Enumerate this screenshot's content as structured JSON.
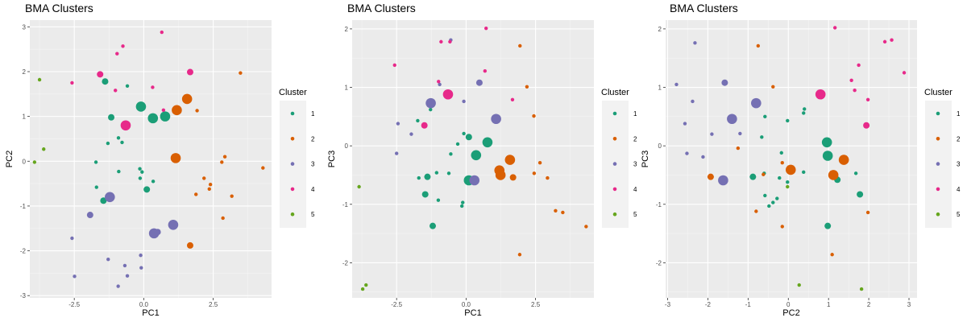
{
  "chart_data": [
    {
      "type": "scatter",
      "title": "BMA Clusters",
      "xlabel": "PC1",
      "ylabel": "PC2",
      "xlim": [
        -4.1,
        4.6
      ],
      "ylim": [
        -3.05,
        3.15
      ],
      "xticks": [
        -2.5,
        0.0,
        2.5
      ],
      "xtick_labels": [
        "-2.5",
        "0.0",
        "2.5"
      ],
      "yticks": [
        -3,
        -2,
        -1,
        0,
        1,
        2,
        3
      ],
      "ytick_labels": [
        "-3",
        "-2",
        "-1",
        "0",
        "1",
        "2",
        "3"
      ],
      "grid": true,
      "legend_title": "Cluster",
      "legend_position": "right",
      "points": [
        {
          "x": -0.1,
          "y": 1.22,
          "c": 1,
          "s": 2
        },
        {
          "x": 0.33,
          "y": 0.96,
          "c": 1,
          "s": 2
        },
        {
          "x": 0.77,
          "y": 1.0,
          "c": 1,
          "s": 2
        },
        {
          "x": -1.17,
          "y": 0.98,
          "c": 1,
          "s": 1
        },
        {
          "x": -1.39,
          "y": 1.78,
          "c": 1,
          "s": 1
        },
        {
          "x": -0.59,
          "y": 1.68,
          "c": 1,
          "s": 0
        },
        {
          "x": -0.91,
          "y": 0.52,
          "c": 1,
          "s": 0
        },
        {
          "x": -0.78,
          "y": 0.42,
          "c": 1,
          "s": 0
        },
        {
          "x": -1.29,
          "y": 0.4,
          "c": 1,
          "s": 0
        },
        {
          "x": -1.72,
          "y": -0.02,
          "c": 1,
          "s": 0
        },
        {
          "x": -0.9,
          "y": -0.23,
          "c": 1,
          "s": 0
        },
        {
          "x": -0.14,
          "y": -0.17,
          "c": 1,
          "s": 0
        },
        {
          "x": -0.06,
          "y": -0.24,
          "c": 1,
          "s": 0
        },
        {
          "x": -0.13,
          "y": -0.38,
          "c": 1,
          "s": 0
        },
        {
          "x": 0.34,
          "y": -0.45,
          "c": 1,
          "s": 0
        },
        {
          "x": 0.11,
          "y": -0.63,
          "c": 1,
          "s": 1
        },
        {
          "x": -1.7,
          "y": -0.58,
          "c": 1,
          "s": 0
        },
        {
          "x": -1.45,
          "y": -0.88,
          "c": 1,
          "s": 1
        },
        {
          "x": 1.19,
          "y": 1.14,
          "c": 2,
          "s": 2
        },
        {
          "x": 1.56,
          "y": 1.39,
          "c": 2,
          "s": 2
        },
        {
          "x": 1.15,
          "y": 0.07,
          "c": 2,
          "s": 2
        },
        {
          "x": 1.92,
          "y": 1.13,
          "c": 2,
          "s": 0
        },
        {
          "x": 1.67,
          "y": -1.88,
          "c": 2,
          "s": 1
        },
        {
          "x": 3.48,
          "y": 1.97,
          "c": 2,
          "s": 0
        },
        {
          "x": 2.92,
          "y": 0.1,
          "c": 2,
          "s": 0
        },
        {
          "x": 2.81,
          "y": -0.02,
          "c": 2,
          "s": 0
        },
        {
          "x": 4.29,
          "y": -0.15,
          "c": 2,
          "s": 0
        },
        {
          "x": 2.17,
          "y": -0.38,
          "c": 2,
          "s": 0
        },
        {
          "x": 2.4,
          "y": -0.52,
          "c": 2,
          "s": 0
        },
        {
          "x": 2.36,
          "y": -0.62,
          "c": 2,
          "s": 0
        },
        {
          "x": 1.88,
          "y": -0.74,
          "c": 2,
          "s": 0
        },
        {
          "x": 3.17,
          "y": -0.78,
          "c": 2,
          "s": 0
        },
        {
          "x": 2.85,
          "y": -1.27,
          "c": 2,
          "s": 0
        },
        {
          "x": -1.22,
          "y": -0.8,
          "c": 3,
          "s": 2
        },
        {
          "x": 0.37,
          "y": -1.61,
          "c": 3,
          "s": 2
        },
        {
          "x": 0.5,
          "y": -1.58,
          "c": 3,
          "s": 1
        },
        {
          "x": 1.06,
          "y": -1.42,
          "c": 3,
          "s": 2
        },
        {
          "x": -1.93,
          "y": -1.2,
          "c": 3,
          "s": 1
        },
        {
          "x": -2.58,
          "y": -1.72,
          "c": 3,
          "s": 0
        },
        {
          "x": -1.28,
          "y": -2.19,
          "c": 3,
          "s": 0
        },
        {
          "x": -0.11,
          "y": -2.1,
          "c": 3,
          "s": 0
        },
        {
          "x": -0.68,
          "y": -2.33,
          "c": 3,
          "s": 0
        },
        {
          "x": -0.09,
          "y": -2.38,
          "c": 3,
          "s": 0
        },
        {
          "x": -2.49,
          "y": -2.57,
          "c": 3,
          "s": 0
        },
        {
          "x": -0.59,
          "y": -2.56,
          "c": 3,
          "s": 0
        },
        {
          "x": -0.92,
          "y": -2.79,
          "c": 3,
          "s": 0
        },
        {
          "x": -0.65,
          "y": 0.8,
          "c": 4,
          "s": 2
        },
        {
          "x": -1.57,
          "y": 1.94,
          "c": 4,
          "s": 1
        },
        {
          "x": -2.58,
          "y": 1.75,
          "c": 4,
          "s": 0
        },
        {
          "x": -0.75,
          "y": 2.57,
          "c": 4,
          "s": 0
        },
        {
          "x": -0.96,
          "y": 2.4,
          "c": 4,
          "s": 0
        },
        {
          "x": 0.65,
          "y": 2.88,
          "c": 4,
          "s": 0
        },
        {
          "x": 1.67,
          "y": 1.99,
          "c": 4,
          "s": 1
        },
        {
          "x": 0.32,
          "y": 1.65,
          "c": 4,
          "s": 0
        },
        {
          "x": -1.02,
          "y": 1.58,
          "c": 4,
          "s": 0
        },
        {
          "x": 0.71,
          "y": 1.14,
          "c": 4,
          "s": 0
        },
        {
          "x": -3.75,
          "y": 1.82,
          "c": 5,
          "s": 0
        },
        {
          "x": -3.6,
          "y": 0.27,
          "c": 5,
          "s": 0
        },
        {
          "x": -3.93,
          "y": -0.02,
          "c": 5,
          "s": 0
        }
      ]
    },
    {
      "type": "scatter",
      "title": "BMA Clusters",
      "xlabel": "PC1",
      "ylabel": "PC3",
      "xlim": [
        -4.1,
        4.6
      ],
      "ylim": [
        -2.6,
        2.15
      ],
      "xticks": [
        -2.5,
        0.0,
        2.5
      ],
      "xtick_labels": [
        "-2.5",
        "0.0",
        "2.5"
      ],
      "yticks": [
        -2,
        -1,
        0,
        1,
        2
      ],
      "ytick_labels": [
        "-2",
        "-1",
        "0",
        "1",
        "2"
      ],
      "grid": true,
      "legend_title": "Cluster",
      "legend_position": "right",
      "points": [
        {
          "x": 0.1,
          "y": -0.59,
          "c": 1,
          "s": 2
        },
        {
          "x": 0.36,
          "y": -0.16,
          "c": 1,
          "s": 2
        },
        {
          "x": 0.77,
          "y": 0.06,
          "c": 1,
          "s": 2
        },
        {
          "x": -1.2,
          "y": -1.37,
          "c": 1,
          "s": 1
        },
        {
          "x": -1.39,
          "y": -0.53,
          "c": 1,
          "s": 1
        },
        {
          "x": -1.47,
          "y": -0.83,
          "c": 1,
          "s": 1
        },
        {
          "x": -1.7,
          "y": -0.55,
          "c": 1,
          "s": 0
        },
        {
          "x": -1.06,
          "y": -0.46,
          "c": 1,
          "s": 0
        },
        {
          "x": -0.62,
          "y": -0.47,
          "c": 1,
          "s": 0
        },
        {
          "x": -1.0,
          "y": -0.93,
          "c": 1,
          "s": 0
        },
        {
          "x": -0.12,
          "y": -0.97,
          "c": 1,
          "s": 0
        },
        {
          "x": -0.15,
          "y": -1.03,
          "c": 1,
          "s": 0
        },
        {
          "x": 0.1,
          "y": 0.15,
          "c": 1,
          "s": 1
        },
        {
          "x": -0.08,
          "y": 0.21,
          "c": 1,
          "s": 0
        },
        {
          "x": -0.3,
          "y": 0.03,
          "c": 1,
          "s": 0
        },
        {
          "x": -0.55,
          "y": -0.14,
          "c": 1,
          "s": 0
        },
        {
          "x": -1.74,
          "y": 0.43,
          "c": 1,
          "s": 0
        },
        {
          "x": -1.28,
          "y": 0.62,
          "c": 1,
          "s": 0
        },
        {
          "x": 1.2,
          "y": -0.42,
          "c": 2,
          "s": 2
        },
        {
          "x": 1.24,
          "y": -0.5,
          "c": 2,
          "s": 2
        },
        {
          "x": 1.58,
          "y": -0.24,
          "c": 2,
          "s": 2
        },
        {
          "x": 1.69,
          "y": -0.54,
          "c": 2,
          "s": 1
        },
        {
          "x": 1.94,
          "y": 1.71,
          "c": 2,
          "s": 0
        },
        {
          "x": 2.19,
          "y": 1.01,
          "c": 2,
          "s": 0
        },
        {
          "x": 2.44,
          "y": 0.51,
          "c": 2,
          "s": 0
        },
        {
          "x": 2.66,
          "y": -0.29,
          "c": 2,
          "s": 0
        },
        {
          "x": 2.45,
          "y": -0.47,
          "c": 2,
          "s": 0
        },
        {
          "x": 2.93,
          "y": -0.55,
          "c": 2,
          "s": 0
        },
        {
          "x": 3.22,
          "y": -1.11,
          "c": 2,
          "s": 0
        },
        {
          "x": 3.48,
          "y": -1.14,
          "c": 2,
          "s": 0
        },
        {
          "x": 4.32,
          "y": -1.38,
          "c": 2,
          "s": 0
        },
        {
          "x": 1.93,
          "y": -1.86,
          "c": 2,
          "s": 0
        },
        {
          "x": -1.27,
          "y": 0.73,
          "c": 3,
          "s": 2
        },
        {
          "x": 0.48,
          "y": 1.08,
          "c": 3,
          "s": 1
        },
        {
          "x": 1.08,
          "y": 0.46,
          "c": 3,
          "s": 2
        },
        {
          "x": 0.3,
          "y": -0.59,
          "c": 3,
          "s": 2
        },
        {
          "x": -0.55,
          "y": 1.81,
          "c": 3,
          "s": 0
        },
        {
          "x": -0.95,
          "y": 1.05,
          "c": 3,
          "s": 0
        },
        {
          "x": -0.08,
          "y": 0.76,
          "c": 3,
          "s": 0
        },
        {
          "x": -2.45,
          "y": 0.38,
          "c": 3,
          "s": 0
        },
        {
          "x": -1.97,
          "y": 0.2,
          "c": 3,
          "s": 0
        },
        {
          "x": -2.5,
          "y": -0.13,
          "c": 3,
          "s": 0
        },
        {
          "x": -0.65,
          "y": 0.88,
          "c": 4,
          "s": 2
        },
        {
          "x": -1.5,
          "y": 0.35,
          "c": 4,
          "s": 1
        },
        {
          "x": -2.57,
          "y": 1.38,
          "c": 4,
          "s": 0
        },
        {
          "x": -0.9,
          "y": 1.78,
          "c": 4,
          "s": 0
        },
        {
          "x": -0.58,
          "y": 1.78,
          "c": 4,
          "s": 0
        },
        {
          "x": 0.72,
          "y": 2.01,
          "c": 4,
          "s": 0
        },
        {
          "x": -0.99,
          "y": 1.1,
          "c": 4,
          "s": 0
        },
        {
          "x": 0.68,
          "y": 1.28,
          "c": 4,
          "s": 0
        },
        {
          "x": 1.67,
          "y": 0.79,
          "c": 4,
          "s": 0
        },
        {
          "x": -3.85,
          "y": -0.7,
          "c": 5,
          "s": 0
        },
        {
          "x": -3.6,
          "y": -2.38,
          "c": 5,
          "s": 0
        },
        {
          "x": -3.72,
          "y": -2.45,
          "c": 5,
          "s": 0
        }
      ]
    },
    {
      "type": "scatter",
      "title": "BMA Clusters",
      "xlabel": "PC2",
      "ylabel": "PC3",
      "xlim": [
        -3.05,
        3.2
      ],
      "ylim": [
        -2.6,
        2.15
      ],
      "xticks": [
        -3,
        -2,
        -1,
        0,
        1,
        2,
        3
      ],
      "xtick_labels": [
        "-3",
        "-2",
        "-1",
        "0",
        "1",
        "2",
        "3"
      ],
      "yticks": [
        -2,
        -1,
        0,
        1,
        2
      ],
      "ytick_labels": [
        "-2",
        "-1",
        "0",
        "1",
        "2"
      ],
      "grid": true,
      "legend_title": "Cluster",
      "legend_position": "right",
      "points": [
        {
          "x": 0.96,
          "y": 0.06,
          "c": 1,
          "s": 2
        },
        {
          "x": 0.98,
          "y": -0.17,
          "c": 1,
          "s": 2
        },
        {
          "x": 1.22,
          "y": -0.58,
          "c": 1,
          "s": 1
        },
        {
          "x": 0.98,
          "y": -1.37,
          "c": 1,
          "s": 1
        },
        {
          "x": 1.78,
          "y": -0.83,
          "c": 1,
          "s": 1
        },
        {
          "x": 1.68,
          "y": -0.47,
          "c": 1,
          "s": 0
        },
        {
          "x": -0.88,
          "y": -0.53,
          "c": 1,
          "s": 1
        },
        {
          "x": -0.6,
          "y": -0.47,
          "c": 1,
          "s": 0
        },
        {
          "x": -0.22,
          "y": -0.55,
          "c": 1,
          "s": 0
        },
        {
          "x": -0.28,
          "y": -0.9,
          "c": 1,
          "s": 0
        },
        {
          "x": -0.38,
          "y": -0.97,
          "c": 1,
          "s": 0
        },
        {
          "x": -0.48,
          "y": -1.03,
          "c": 1,
          "s": 0
        },
        {
          "x": -0.02,
          "y": -0.62,
          "c": 1,
          "s": 0
        },
        {
          "x": -0.58,
          "y": -0.85,
          "c": 1,
          "s": 0
        },
        {
          "x": 0.38,
          "y": -0.45,
          "c": 1,
          "s": 0
        },
        {
          "x": -0.17,
          "y": -0.12,
          "c": 1,
          "s": 0
        },
        {
          "x": -0.66,
          "y": 0.15,
          "c": 1,
          "s": 0
        },
        {
          "x": -0.58,
          "y": 0.5,
          "c": 1,
          "s": 0
        },
        {
          "x": 0.38,
          "y": 0.56,
          "c": 1,
          "s": 0
        },
        {
          "x": 0.4,
          "y": 0.63,
          "c": 1,
          "s": 0
        },
        {
          "x": -0.02,
          "y": 0.43,
          "c": 1,
          "s": 0
        },
        {
          "x": 0.06,
          "y": -0.41,
          "c": 2,
          "s": 2
        },
        {
          "x": 1.38,
          "y": -0.24,
          "c": 2,
          "s": 2
        },
        {
          "x": 1.12,
          "y": -0.5,
          "c": 2,
          "s": 2
        },
        {
          "x": -1.93,
          "y": -0.53,
          "c": 2,
          "s": 1
        },
        {
          "x": -0.75,
          "y": 1.71,
          "c": 2,
          "s": 0
        },
        {
          "x": -0.38,
          "y": 1.01,
          "c": 2,
          "s": 0
        },
        {
          "x": -0.8,
          "y": -1.12,
          "c": 2,
          "s": 0
        },
        {
          "x": -0.15,
          "y": -1.38,
          "c": 2,
          "s": 0
        },
        {
          "x": 1.09,
          "y": -1.86,
          "c": 2,
          "s": 0
        },
        {
          "x": -0.15,
          "y": -0.29,
          "c": 2,
          "s": 0
        },
        {
          "x": -1.25,
          "y": -0.04,
          "c": 2,
          "s": 0
        },
        {
          "x": -0.62,
          "y": -0.49,
          "c": 2,
          "s": 0
        },
        {
          "x": 1.98,
          "y": -1.14,
          "c": 2,
          "s": 0
        },
        {
          "x": -1.58,
          "y": 1.08,
          "c": 3,
          "s": 1
        },
        {
          "x": -1.4,
          "y": 0.46,
          "c": 3,
          "s": 2
        },
        {
          "x": -0.8,
          "y": 0.73,
          "c": 3,
          "s": 2
        },
        {
          "x": -1.62,
          "y": -0.59,
          "c": 3,
          "s": 2
        },
        {
          "x": -2.32,
          "y": 1.76,
          "c": 3,
          "s": 0
        },
        {
          "x": -2.38,
          "y": 0.76,
          "c": 3,
          "s": 0
        },
        {
          "x": -2.78,
          "y": 1.05,
          "c": 3,
          "s": 0
        },
        {
          "x": -2.57,
          "y": 0.38,
          "c": 3,
          "s": 0
        },
        {
          "x": -1.2,
          "y": 0.21,
          "c": 3,
          "s": 0
        },
        {
          "x": -2.12,
          "y": -0.19,
          "c": 3,
          "s": 0
        },
        {
          "x": -1.9,
          "y": 0.2,
          "c": 3,
          "s": 0
        },
        {
          "x": -2.52,
          "y": -0.13,
          "c": 3,
          "s": 0
        },
        {
          "x": 0.8,
          "y": 0.88,
          "c": 4,
          "s": 2
        },
        {
          "x": 1.94,
          "y": 0.35,
          "c": 4,
          "s": 1
        },
        {
          "x": 1.16,
          "y": 2.02,
          "c": 4,
          "s": 0
        },
        {
          "x": 1.75,
          "y": 1.38,
          "c": 4,
          "s": 0
        },
        {
          "x": 1.57,
          "y": 1.12,
          "c": 4,
          "s": 0
        },
        {
          "x": 1.65,
          "y": 0.95,
          "c": 4,
          "s": 0
        },
        {
          "x": 1.98,
          "y": 0.79,
          "c": 4,
          "s": 0
        },
        {
          "x": 2.4,
          "y": 1.78,
          "c": 4,
          "s": 0
        },
        {
          "x": 2.57,
          "y": 1.81,
          "c": 4,
          "s": 0
        },
        {
          "x": 2.88,
          "y": 1.25,
          "c": 4,
          "s": 0
        },
        {
          "x": -0.02,
          "y": -0.7,
          "c": 5,
          "s": 0
        },
        {
          "x": 0.27,
          "y": -2.38,
          "c": 5,
          "s": 0
        },
        {
          "x": 1.82,
          "y": -2.45,
          "c": 5,
          "s": 0
        }
      ]
    }
  ],
  "legend": {
    "title": "Cluster",
    "items": [
      {
        "label": "1",
        "color": "#1b9e77"
      },
      {
        "label": "2",
        "color": "#d95f02"
      },
      {
        "label": "3",
        "color": "#7570b3"
      },
      {
        "label": "4",
        "color": "#e7298a"
      },
      {
        "label": "5",
        "color": "#66a61e"
      }
    ]
  },
  "colors": {
    "panel_background": "#ebebeb",
    "grid_major": "#ffffff",
    "grid_minor": "#f5f5f5",
    "legend_background": "#f2f2f2",
    "cluster_1": "#1b9e77",
    "cluster_2": "#d95f02",
    "cluster_3": "#7570b3",
    "cluster_4": "#e7298a",
    "cluster_5": "#66a61e"
  }
}
